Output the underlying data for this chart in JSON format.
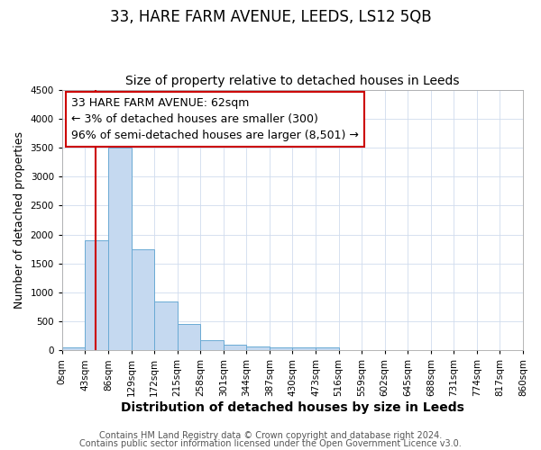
{
  "title": "33, HARE FARM AVENUE, LEEDS, LS12 5QB",
  "subtitle": "Size of property relative to detached houses in Leeds",
  "xlabel": "Distribution of detached houses by size in Leeds",
  "ylabel": "Number of detached properties",
  "bin_edges": [
    0,
    43,
    86,
    129,
    172,
    215,
    258,
    301,
    344,
    387,
    430,
    473,
    516,
    559,
    602,
    645,
    688,
    731,
    774,
    817,
    860
  ],
  "bar_heights": [
    50,
    1900,
    3500,
    1750,
    850,
    450,
    170,
    100,
    65,
    50,
    50,
    50,
    0,
    0,
    0,
    0,
    0,
    0,
    0,
    0
  ],
  "bar_color": "#c5d9f0",
  "bar_edge_color": "#6aaad4",
  "ylim": [
    0,
    4500
  ],
  "yticks": [
    0,
    500,
    1000,
    1500,
    2000,
    2500,
    3000,
    3500,
    4000,
    4500
  ],
  "red_line_x": 62,
  "red_line_color": "#cc0000",
  "annotation_line1": "33 HARE FARM AVENUE: 62sqm",
  "annotation_line2": "← 3% of detached houses are smaller (300)",
  "annotation_line3": "96% of semi-detached houses are larger (8,501) →",
  "annotation_bbox_facecolor": "#ffffff",
  "annotation_bbox_edgecolor": "#cc0000",
  "footer_line1": "Contains HM Land Registry data © Crown copyright and database right 2024.",
  "footer_line2": "Contains public sector information licensed under the Open Government Licence v3.0.",
  "background_color": "#ffffff",
  "plot_bg_color": "#ffffff",
  "grid_color": "#d0dcee",
  "title_fontsize": 12,
  "subtitle_fontsize": 10,
  "xlabel_fontsize": 10,
  "ylabel_fontsize": 9,
  "tick_fontsize": 7.5,
  "annotation_fontsize": 9,
  "footer_fontsize": 7
}
